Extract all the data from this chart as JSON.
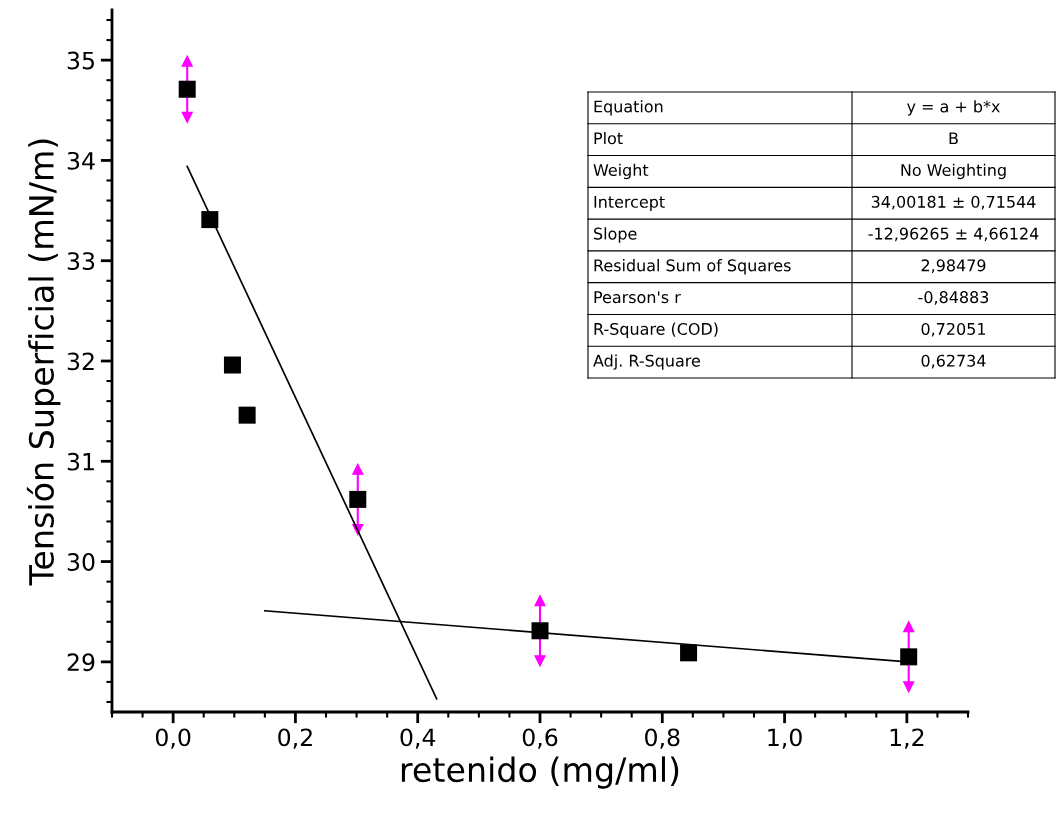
{
  "chart_data": {
    "type": "scatter",
    "xlabel": "retenido (mg/ml)",
    "ylabel": "Tensión Superficial (mN/m)",
    "xlim": [
      -0.1,
      1.3
    ],
    "ylim": [
      28.5,
      35.5
    ],
    "xticks": [
      {
        "value": 0,
        "label": "0,0"
      },
      {
        "value": 0.2,
        "label": "0,2"
      },
      {
        "value": 0.4,
        "label": "0,4"
      },
      {
        "value": 0.6,
        "label": "0,6"
      },
      {
        "value": 0.8,
        "label": "0,8"
      },
      {
        "value": 1.0,
        "label": "1,0"
      },
      {
        "value": 1.2,
        "label": "1,2"
      }
    ],
    "yticks": [
      29,
      30,
      31,
      32,
      33,
      34,
      35
    ],
    "grid": false,
    "legend": false,
    "marker": "square",
    "series": [
      {
        "color": "#000000",
        "x": [
          0.023,
          0.06,
          0.097,
          0.121,
          0.302,
          0.6,
          0.843,
          1.203
        ],
        "values": [
          34.71,
          33.41,
          31.96,
          31.46,
          30.62,
          29.31,
          29.09,
          29.05
        ],
        "errors": [
          0.28,
          null,
          null,
          null,
          0.3,
          0.3,
          null,
          0.3
        ]
      },
      {
        "type": "line",
        "color": "#000000",
        "x": [
          0.023,
          0.431
        ],
        "values": [
          33.94,
          28.63
        ],
        "marker": "none"
      },
      {
        "type": "line",
        "color": "#000000",
        "x": [
          0.15,
          1.2
        ],
        "values": [
          29.51,
          29.0
        ],
        "marker": "none"
      }
    ],
    "annotations": [
      "Equation",
      "y = a + b*x",
      "Plot",
      "B",
      "Weight",
      "No Weighting",
      "Intercept",
      "34,00181 ± 0,71544",
      "Slope",
      "-12,96265 ± 4,66124",
      "Residual Sum of Squares",
      "2,98479",
      "Pearson's r",
      "-0,84883",
      "R-Square (COD)",
      "0,72051",
      "Adj. R-Square",
      "0,62734"
    ]
  }
}
